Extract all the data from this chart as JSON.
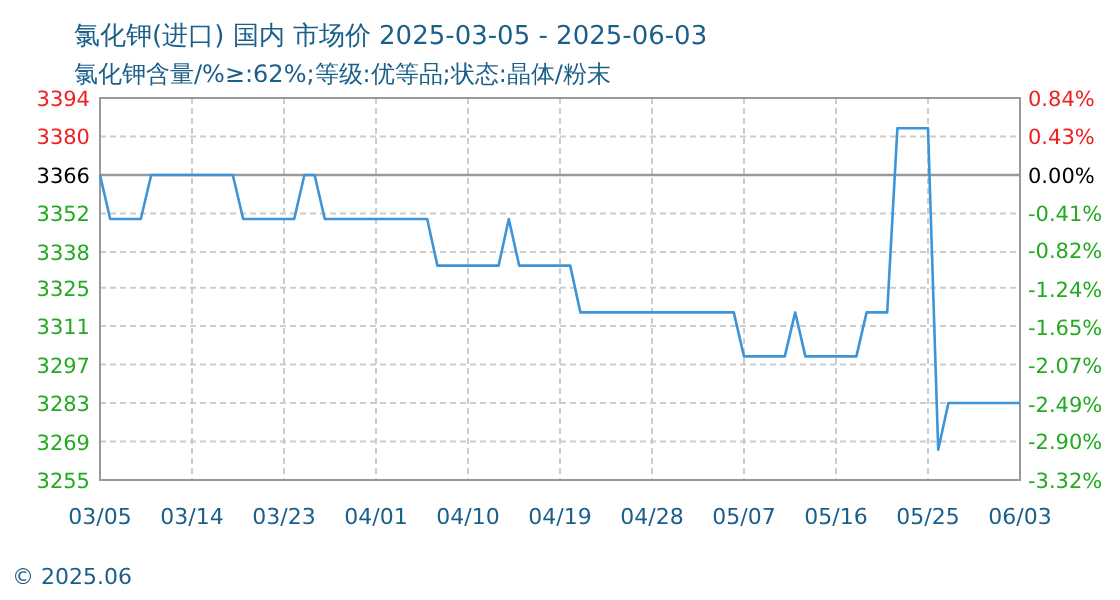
{
  "chart_data": {
    "type": "line",
    "title": "氯化钾(进口) 国内 市场价 2025-03-05 - 2025-06-03",
    "subtitle": "氯化钾含量/%≥:62%;等级:优等品;状态:晶体/粉末",
    "series": [
      {
        "color": "#3d94d6",
        "x": [
          "2025-03-05",
          "2025-03-06",
          "2025-03-09",
          "2025-03-10",
          "2025-03-18",
          "2025-03-19",
          "2025-03-24",
          "2025-03-25",
          "2025-03-26",
          "2025-03-27",
          "2025-04-06",
          "2025-04-07",
          "2025-04-13",
          "2025-04-14",
          "2025-04-15",
          "2025-04-20",
          "2025-04-21",
          "2025-05-06",
          "2025-05-07",
          "2025-05-11",
          "2025-05-12",
          "2025-05-13",
          "2025-05-18",
          "2025-05-19",
          "2025-05-21",
          "2025-05-22",
          "2025-05-25",
          "2025-05-26",
          "2025-05-27",
          "2025-06-03"
        ],
        "values": [
          3366,
          3350,
          3350,
          3366,
          3366,
          3350,
          3350,
          3366,
          3366,
          3350,
          3350,
          3333,
          3333,
          3350,
          3333,
          3333,
          3316,
          3316,
          3300,
          3300,
          3316,
          3300,
          3300,
          3316,
          3316,
          3383,
          3383,
          3266,
          3283,
          3283
        ]
      }
    ],
    "xlim": [
      "2025-03-05",
      "2025-06-03"
    ],
    "xticks": [
      {
        "value": "2025-03-05",
        "label": "03/05"
      },
      {
        "value": "2025-03-14",
        "label": "03/14"
      },
      {
        "value": "2025-03-23",
        "label": "03/23"
      },
      {
        "value": "2025-04-01",
        "label": "04/01"
      },
      {
        "value": "2025-04-10",
        "label": "04/10"
      },
      {
        "value": "2025-04-19",
        "label": "04/19"
      },
      {
        "value": "2025-04-28",
        "label": "04/28"
      },
      {
        "value": "2025-05-07",
        "label": "05/07"
      },
      {
        "value": "2025-05-16",
        "label": "05/16"
      },
      {
        "value": "2025-05-25",
        "label": "05/25"
      },
      {
        "value": "2025-06-03",
        "label": "06/03"
      }
    ],
    "ylim": [
      3255,
      3394
    ],
    "yticks": [
      3394,
      3380,
      3366,
      3352,
      3338,
      3325,
      3311,
      3297,
      3283,
      3269,
      3255
    ],
    "y2lim": [
      -3.32,
      0.84
    ],
    "y2ticks": [
      {
        "value": 0.84,
        "label": "0.84%"
      },
      {
        "value": 0.43,
        "label": "0.43%"
      },
      {
        "value": 0,
        "label": "0.00%"
      },
      {
        "value": -0.41,
        "label": "-0.41%"
      },
      {
        "value": -0.82,
        "label": "-0.82%"
      },
      {
        "value": -1.24,
        "label": "-1.24%"
      },
      {
        "value": -1.65,
        "label": "-1.65%"
      },
      {
        "value": -2.07,
        "label": "-2.07%"
      },
      {
        "value": -2.49,
        "label": "-2.49%"
      },
      {
        "value": -2.9,
        "label": "-2.90%"
      },
      {
        "value": -3.32,
        "label": "-3.32%"
      }
    ],
    "ref_lines": [
      {
        "axis": "y",
        "value": 3366,
        "label": null,
        "color": "#999999"
      }
    ],
    "grid": true,
    "line_style": "solid",
    "annotations": [
      "© 2025.06"
    ]
  }
}
